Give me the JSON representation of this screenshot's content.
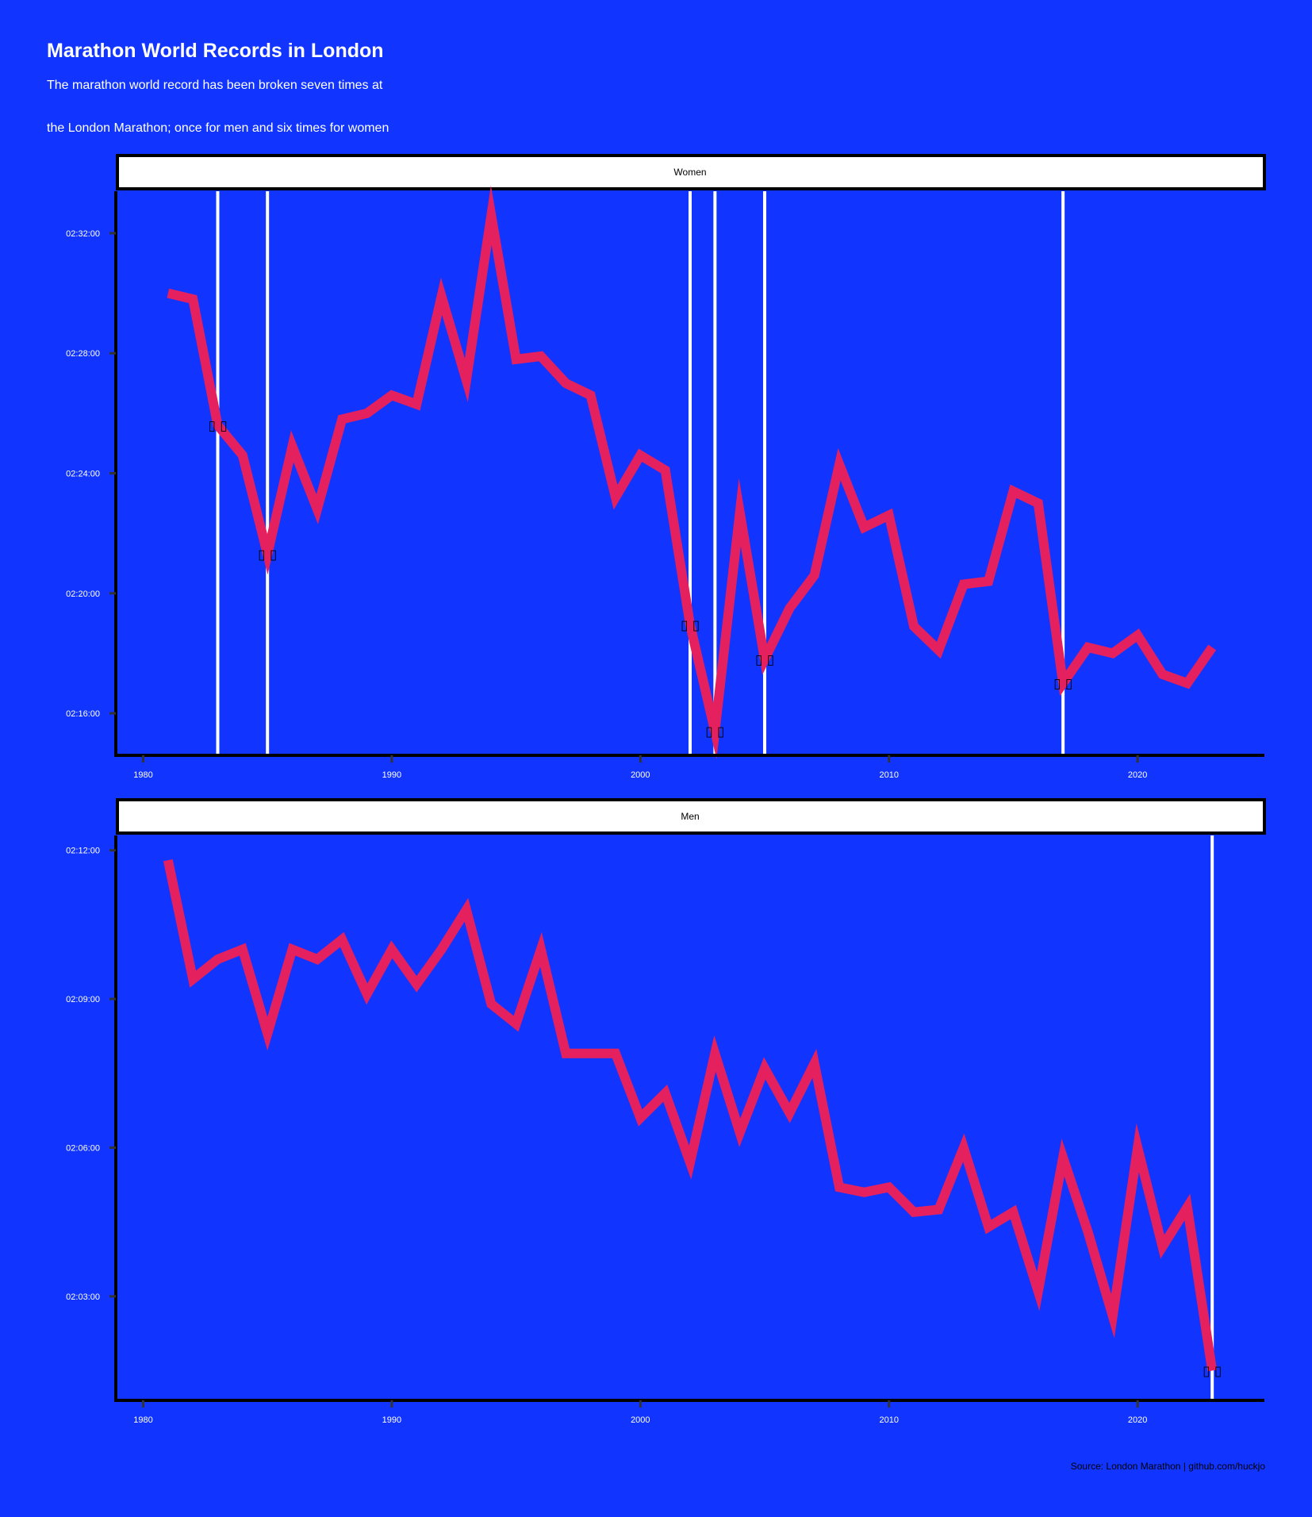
{
  "title": "Marathon World Records in London",
  "subtitle_lines": [
    "The marathon world record has been broken seven times at",
    "the London Marathon; once for men and six times for women"
  ],
  "caption": "Source: London Marathon | github.com/huckjo",
  "colors": {
    "background": "#1135ff",
    "line": "#e5205e",
    "record_line": "#ffffff",
    "axis": "#000000",
    "strip_fill": "#ffffff"
  },
  "chart_data": [
    {
      "type": "line",
      "panel": "Women",
      "x_ticks": [
        "1980",
        "1990",
        "2000",
        "2010",
        "2020"
      ],
      "y_ticks": [
        "02:16:00",
        "02:20:00",
        "02:24:00",
        "02:28:00",
        "02:32:00"
      ],
      "xlim": [
        1978.9,
        2025.1
      ],
      "ylim_minutes": [
        134.6,
        153.4
      ],
      "grid": false,
      "legend": "none",
      "record_years": [
        1983,
        1985,
        2002,
        2003,
        2005,
        2017
      ],
      "record_marker": "▯ ▯",
      "series": [
        {
          "x": [
            1981,
            1982,
            1983,
            1984,
            1985,
            1986,
            1987,
            1988,
            1989,
            1990,
            1991,
            1992,
            1993,
            1994,
            1995,
            1996,
            1997,
            1998,
            1999,
            2000,
            2001,
            2002,
            2003,
            2004,
            2005,
            2006,
            2007,
            2008,
            2009,
            2010,
            2011,
            2012,
            2013,
            2014,
            2015,
            2016,
            2017,
            2018,
            2019,
            2020,
            2021,
            2022,
            2023
          ],
          "y_minutes": [
            150.0,
            149.8,
            145.6,
            144.6,
            141.3,
            144.9,
            142.8,
            145.8,
            146.0,
            146.6,
            146.3,
            149.9,
            147.1,
            152.6,
            147.8,
            147.9,
            147.0,
            146.6,
            143.2,
            144.6,
            144.1,
            138.95,
            135.4,
            142.7,
            137.8,
            139.5,
            140.6,
            144.3,
            142.2,
            142.6,
            138.9,
            138.1,
            140.3,
            140.4,
            143.4,
            143.0,
            137.0,
            138.2,
            138.0,
            138.6,
            137.3,
            137.0,
            138.2
          ]
        }
      ]
    },
    {
      "type": "line",
      "panel": "Men",
      "x_ticks": [
        "1980",
        "1990",
        "2000",
        "2010",
        "2020"
      ],
      "y_ticks": [
        "02:03:00",
        "02:06:00",
        "02:09:00",
        "02:12:00"
      ],
      "xlim": [
        1978.9,
        2025.1
      ],
      "ylim_minutes": [
        120.9,
        132.3
      ],
      "grid": false,
      "legend": "none",
      "record_years": [
        2023
      ],
      "record_marker": "▯ ▯",
      "series": [
        {
          "x": [
            1981,
            1982,
            1983,
            1984,
            1985,
            1986,
            1987,
            1988,
            1989,
            1990,
            1991,
            1992,
            1993,
            1994,
            1995,
            1996,
            1997,
            1998,
            1999,
            2000,
            2001,
            2002,
            2003,
            2004,
            2005,
            2006,
            2007,
            2008,
            2009,
            2010,
            2011,
            2012,
            2013,
            2014,
            2015,
            2016,
            2017,
            2018,
            2019,
            2020,
            2021,
            2022,
            2023
          ],
          "y_minutes": [
            131.8,
            129.4,
            129.8,
            130.0,
            128.3,
            130.0,
            129.8,
            130.2,
            129.1,
            130.0,
            129.3,
            130.0,
            130.8,
            128.9,
            128.5,
            130.0,
            127.9,
            127.9,
            127.9,
            126.6,
            127.1,
            125.7,
            127.9,
            126.3,
            127.6,
            126.7,
            127.7,
            125.2,
            125.1,
            125.2,
            124.7,
            124.75,
            126.0,
            124.4,
            124.7,
            123.1,
            125.8,
            124.3,
            122.6,
            126.0,
            124.0,
            124.8,
            121.5
          ]
        }
      ]
    }
  ]
}
